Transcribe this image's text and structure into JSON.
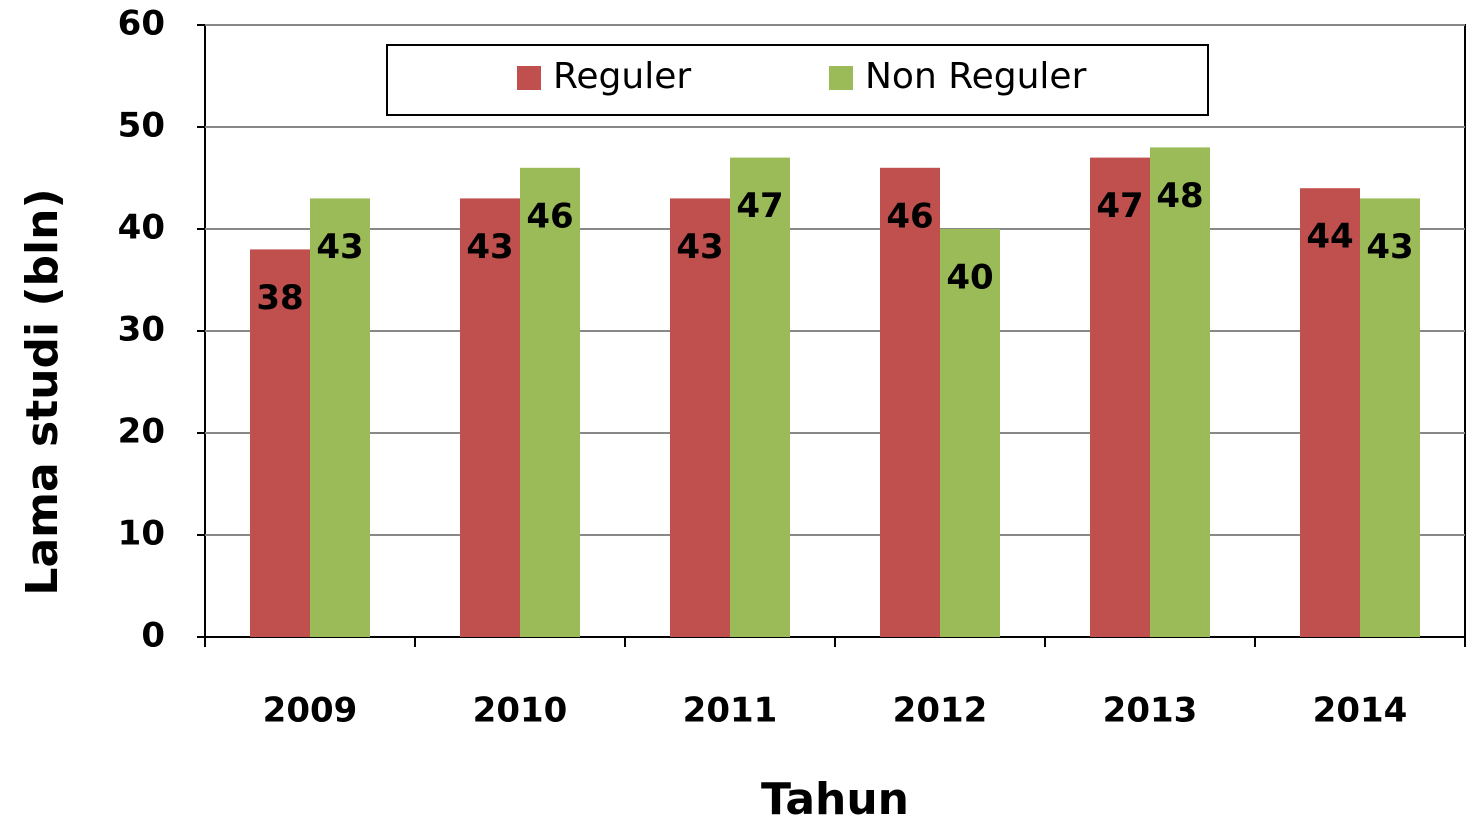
{
  "chart_data": {
    "type": "bar",
    "xlabel": "Tahun",
    "ylabel": "Lama studi (bln)",
    "categories": [
      "2009",
      "2010",
      "2011",
      "2012",
      "2013",
      "2014"
    ],
    "series": [
      {
        "name": "Reguler",
        "color": "#c0504d",
        "values": [
          38,
          43,
          43,
          46,
          47,
          44
        ]
      },
      {
        "name": "Non Reguler",
        "color": "#9bbb59",
        "values": [
          43,
          46,
          47,
          40,
          48,
          43
        ]
      }
    ],
    "ylim": [
      0,
      60
    ],
    "yticks": [
      0,
      10,
      20,
      30,
      40,
      50,
      60
    ],
    "grid": true,
    "legend": "top"
  }
}
